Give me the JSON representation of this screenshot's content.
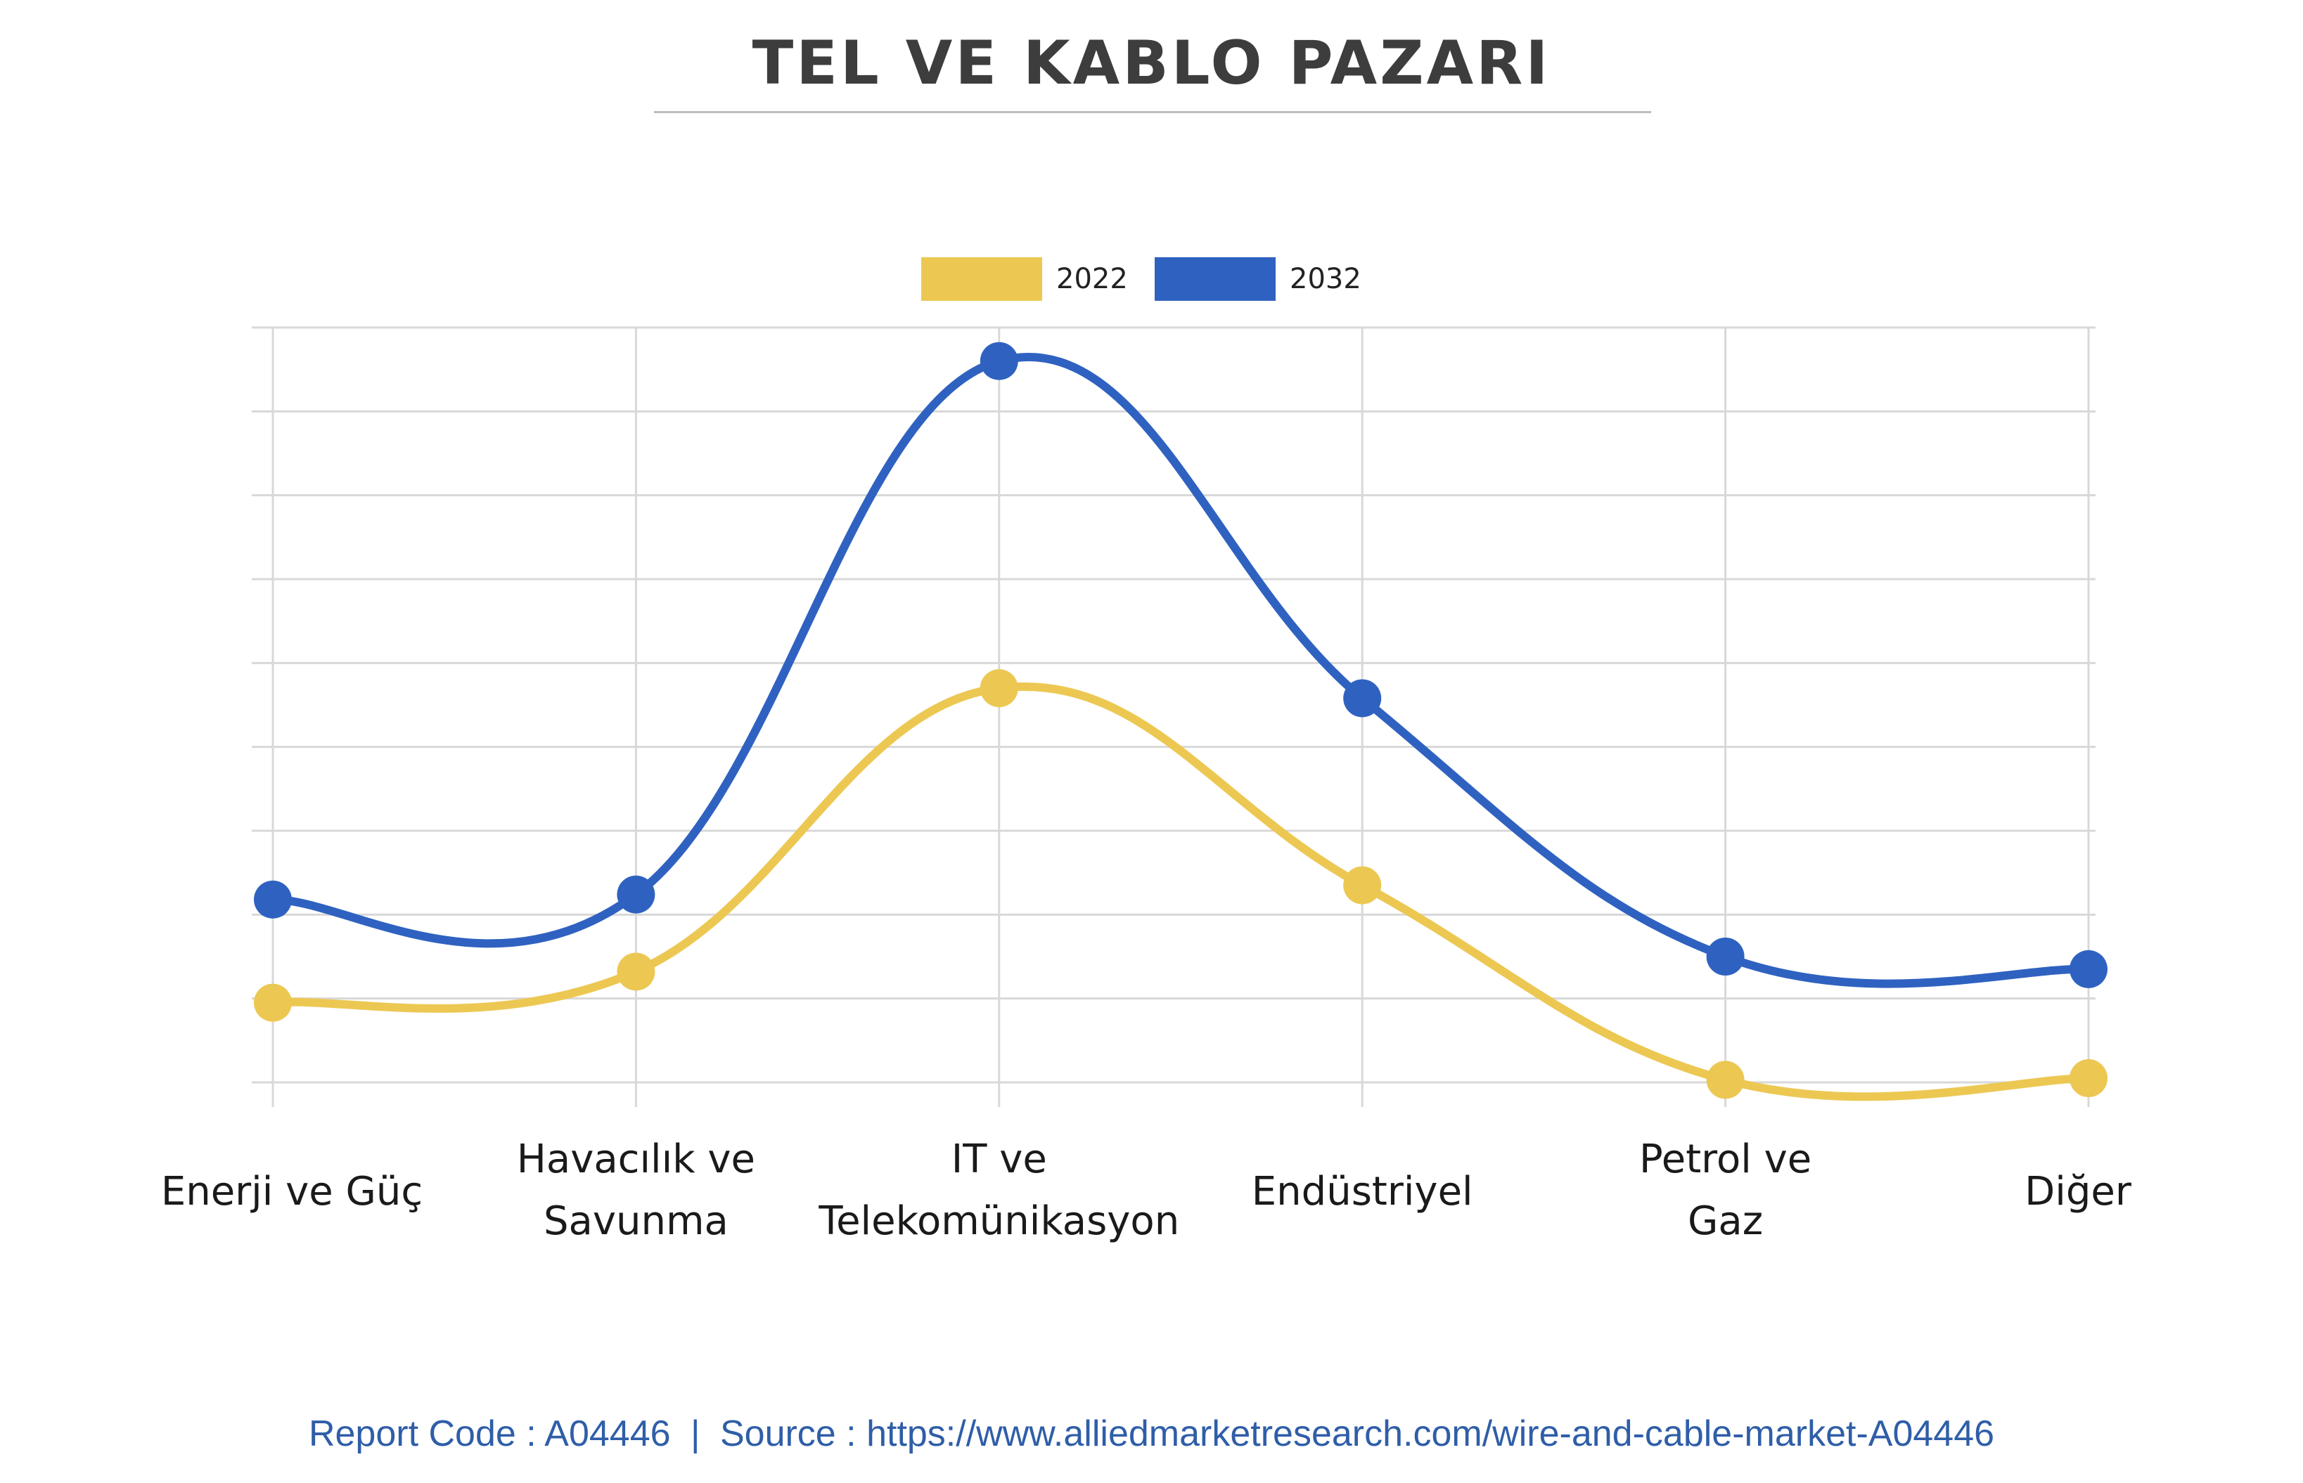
{
  "title": "TEL VE KABLO PAZARI",
  "footer": {
    "report_code": "Report Code : A04446",
    "separator": "|",
    "source": "Source : https://www.alliedmarketresearch.com/wire-and-cable-market-A04446"
  },
  "legend": [
    {
      "label": "2022",
      "color": "#ecc853"
    },
    {
      "label": "2032",
      "color": "#2f62c0"
    }
  ],
  "chart_data": {
    "type": "line",
    "title": "TEL VE KABLO PAZARI",
    "xlabel": "",
    "ylabel": "",
    "categories": [
      "Enerji ve Güç",
      "Havacılık ve\nSavunma",
      "IT ve\nTelekomünikasyon",
      "Endüstriyel",
      "Petrol ve\nGaz",
      "Diğer"
    ],
    "series": [
      {
        "name": "2022",
        "color": "#ecc853",
        "values": [
          9.5,
          13.2,
          47.0,
          23.5,
          0.3,
          0.5
        ]
      },
      {
        "name": "2032",
        "color": "#2f62c0",
        "values": [
          21.8,
          22.4,
          86.0,
          45.8,
          15.0,
          13.5
        ]
      }
    ],
    "ylim": [
      0,
      90
    ],
    "smooth": true,
    "grid": true,
    "y_tick_labels_shown": false,
    "legend_position": "top-center"
  }
}
